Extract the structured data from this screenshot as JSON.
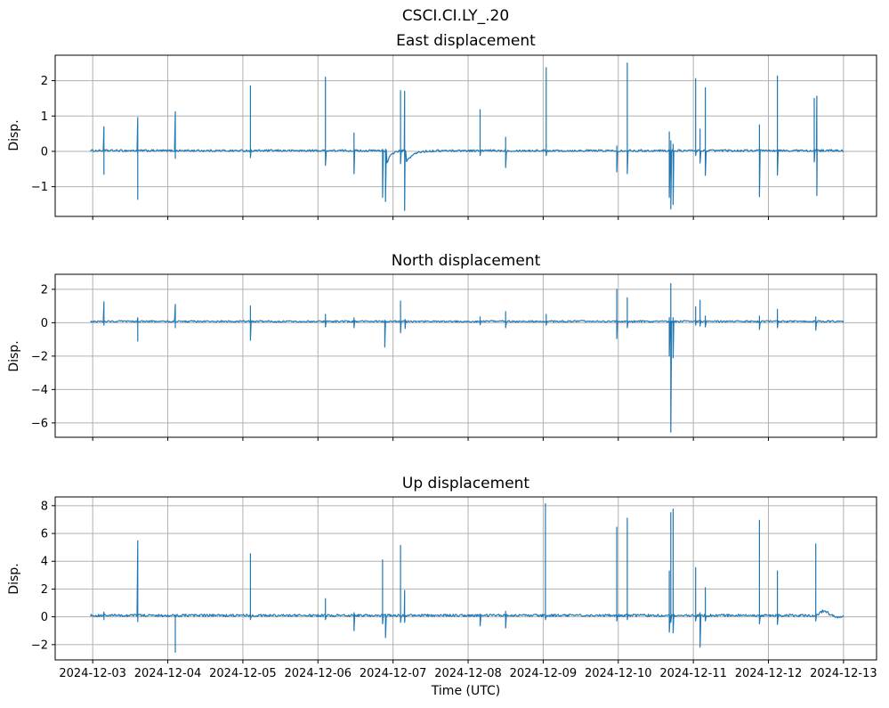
{
  "chart_data": {
    "type": "line",
    "suptitle": "CSCI.CI.LY_.20",
    "xlabel": "Time (UTC)",
    "series_color": "#1f77b4",
    "grid_color": "#b0b0b0",
    "frame_color": "#000000",
    "xlim_days": [
      -0.5,
      10.44
    ],
    "x_tick_labels": [
      "2024-12-03",
      "2024-12-04",
      "2024-12-05",
      "2024-12-06",
      "2024-12-07",
      "2024-12-08",
      "2024-12-09",
      "2024-12-10",
      "2024-12-11",
      "2024-12-12",
      "2024-12-13"
    ],
    "spike_format": "[day_offset_from_2024-12-03, peak_up_disp, peak_down_disp]",
    "tail_format": "[start_day, amplitude, decay_days]",
    "bump_format": "[center_day, amplitude, sigma_days]",
    "panels": [
      {
        "id": "east",
        "title": "East displacement",
        "ylabel": "Disp.",
        "ylim": [
          -1.84,
          2.72
        ],
        "yticks": [
          -1,
          0,
          1,
          2
        ],
        "base": 0.02,
        "noise": 0.03,
        "spikes": [
          [
            0.15,
            0.7,
            -0.65
          ],
          [
            0.6,
            0.96,
            -1.36
          ],
          [
            1.1,
            1.12,
            -0.2
          ],
          [
            2.1,
            1.85,
            -0.18
          ],
          [
            3.1,
            2.1,
            -0.4
          ],
          [
            3.48,
            0.52,
            -0.63
          ],
          [
            3.86,
            0.06,
            -1.3
          ],
          [
            3.9,
            0.06,
            -1.42
          ],
          [
            4.1,
            1.72,
            -0.35
          ],
          [
            4.155,
            1.7,
            -1.67
          ],
          [
            5.16,
            1.18,
            -0.12
          ],
          [
            5.5,
            0.4,
            -0.46
          ],
          [
            6.04,
            2.37,
            -0.12
          ],
          [
            6.98,
            0.15,
            -0.58
          ],
          [
            7.12,
            2.5,
            -0.63
          ],
          [
            7.68,
            0.55,
            -1.3
          ],
          [
            7.7,
            0.3,
            -1.63
          ],
          [
            7.73,
            0.2,
            -1.5
          ],
          [
            8.03,
            2.06,
            -0.12
          ],
          [
            8.09,
            0.63,
            -0.33
          ],
          [
            8.16,
            1.8,
            -0.68
          ],
          [
            8.88,
            0.75,
            -1.28
          ],
          [
            9.12,
            2.13,
            -0.67
          ],
          [
            9.61,
            1.5,
            -0.3
          ],
          [
            9.645,
            1.56,
            -1.25
          ]
        ],
        "tails": [
          [
            3.91,
            -0.45,
            0.05
          ],
          [
            4.17,
            -0.35,
            0.09
          ]
        ],
        "bumps": []
      },
      {
        "id": "north",
        "title": "North displacement",
        "ylabel": "Disp.",
        "ylim": [
          -6.86,
          2.9
        ],
        "yticks": [
          -6,
          -4,
          -2,
          0,
          2
        ],
        "base": 0.08,
        "noise": 0.05,
        "spikes": [
          [
            0.15,
            1.25,
            -0.15
          ],
          [
            0.6,
            0.3,
            -1.1
          ],
          [
            1.1,
            1.1,
            -0.3
          ],
          [
            2.1,
            1.0,
            -1.05
          ],
          [
            3.1,
            0.5,
            -0.25
          ],
          [
            3.48,
            0.3,
            -0.3
          ],
          [
            3.89,
            0.15,
            -1.45
          ],
          [
            4.1,
            1.3,
            -0.6
          ],
          [
            4.16,
            0.2,
            -0.35
          ],
          [
            5.16,
            0.35,
            -0.12
          ],
          [
            5.5,
            0.67,
            -0.3
          ],
          [
            6.04,
            0.5,
            -0.15
          ],
          [
            6.98,
            2.0,
            -0.95
          ],
          [
            7.12,
            1.5,
            -0.3
          ],
          [
            7.68,
            0.3,
            -2.0
          ],
          [
            7.7,
            2.35,
            -6.55
          ],
          [
            7.73,
            0.3,
            -2.1
          ],
          [
            8.03,
            0.95,
            -0.15
          ],
          [
            8.09,
            1.35,
            -0.2
          ],
          [
            8.16,
            0.4,
            -0.25
          ],
          [
            8.88,
            0.4,
            -0.4
          ],
          [
            9.12,
            0.8,
            -0.3
          ],
          [
            9.63,
            0.35,
            -0.45
          ]
        ],
        "tails": [],
        "bumps": []
      },
      {
        "id": "up",
        "title": "Up displacement",
        "ylabel": "Disp.",
        "ylim": [
          -3.1,
          8.63
        ],
        "yticks": [
          -2,
          0,
          2,
          4,
          6,
          8
        ],
        "base": 0.1,
        "noise": 0.09,
        "spikes": [
          [
            0.15,
            0.35,
            -0.2
          ],
          [
            0.6,
            5.47,
            -0.35
          ],
          [
            1.1,
            0.15,
            -2.55
          ],
          [
            2.1,
            4.55,
            -0.2
          ],
          [
            3.1,
            1.31,
            -0.2
          ],
          [
            3.48,
            0.3,
            -1.0
          ],
          [
            3.86,
            4.1,
            -0.5
          ],
          [
            3.9,
            0.2,
            -1.5
          ],
          [
            4.1,
            5.15,
            -0.4
          ],
          [
            4.155,
            1.9,
            -0.4
          ],
          [
            5.16,
            0.2,
            -0.65
          ],
          [
            5.5,
            0.4,
            -0.8
          ],
          [
            6.03,
            8.14,
            -0.2
          ],
          [
            6.98,
            6.45,
            -0.3
          ],
          [
            7.12,
            7.1,
            -0.2
          ],
          [
            7.68,
            3.3,
            -1.1
          ],
          [
            7.7,
            7.5,
            -0.4
          ],
          [
            7.73,
            7.76,
            -1.15
          ],
          [
            8.03,
            3.55,
            -0.3
          ],
          [
            8.09,
            0.3,
            -2.18
          ],
          [
            8.16,
            2.1,
            -0.3
          ],
          [
            8.88,
            6.95,
            -0.5
          ],
          [
            9.12,
            3.3,
            -0.55
          ],
          [
            9.63,
            5.25,
            -0.3
          ]
        ],
        "tails": [],
        "bumps": [
          [
            9.74,
            0.33,
            0.07
          ],
          [
            9.95,
            -0.12,
            0.08
          ]
        ]
      }
    ]
  }
}
